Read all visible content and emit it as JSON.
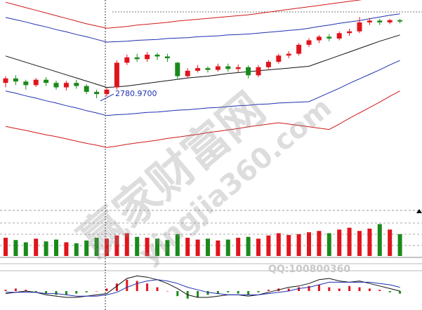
{
  "chart_data": [
    {
      "type": "candlestick",
      "ylim": [
        2546,
        3000
      ],
      "up_color": "#e0141c",
      "down_color": "#1a8a1a",
      "annotation": "2780.9700",
      "annotation_value": 2780.97,
      "open": [
        2815,
        2825,
        2818,
        2810,
        2822,
        2815,
        2805,
        2815,
        2808,
        2795,
        2790,
        2805,
        2860,
        2872,
        2868,
        2878,
        2874,
        2860,
        2830,
        2842,
        2848,
        2844,
        2852,
        2846,
        2850,
        2832,
        2850,
        2862,
        2876,
        2880,
        2900,
        2910,
        2918,
        2914,
        2926,
        2930,
        2950,
        2954,
        2950,
        2955
      ],
      "close": [
        2825,
        2818,
        2810,
        2822,
        2815,
        2805,
        2815,
        2808,
        2795,
        2790,
        2800,
        2860,
        2872,
        2868,
        2878,
        2874,
        2870,
        2830,
        2842,
        2848,
        2844,
        2852,
        2846,
        2850,
        2832,
        2850,
        2862,
        2876,
        2880,
        2900,
        2910,
        2918,
        2914,
        2926,
        2930,
        2950,
        2954,
        2950,
        2955,
        2952
      ],
      "high": [
        2830,
        2832,
        2822,
        2826,
        2828,
        2820,
        2820,
        2822,
        2812,
        2800,
        2805,
        2865,
        2878,
        2880,
        2884,
        2882,
        2880,
        2862,
        2848,
        2855,
        2852,
        2858,
        2858,
        2856,
        2854,
        2855,
        2866,
        2880,
        2886,
        2904,
        2915,
        2922,
        2924,
        2930,
        2936,
        2962,
        2960,
        2958,
        2958,
        2958
      ],
      "low": [
        2805,
        2810,
        2800,
        2806,
        2808,
        2800,
        2798,
        2802,
        2790,
        2781,
        2785,
        2800,
        2855,
        2862,
        2862,
        2866,
        2862,
        2822,
        2826,
        2838,
        2838,
        2840,
        2840,
        2838,
        2825,
        2828,
        2846,
        2858,
        2870,
        2876,
        2895,
        2904,
        2908,
        2910,
        2920,
        2926,
        2944,
        2944,
        2946,
        2948
      ],
      "series": [
        {
          "color": "#111111",
          "values": [
            2875,
            2868,
            2861,
            2854,
            2847,
            2840,
            2833,
            2826,
            2819,
            2812,
            2805,
            2806,
            2808,
            2811,
            2814,
            2817,
            2820,
            2823,
            2826,
            2828,
            2830,
            2833,
            2836,
            2838,
            2840,
            2842,
            2844,
            2846,
            2848,
            2850,
            2852,
            2860,
            2868,
            2876,
            2884,
            2892,
            2900,
            2908,
            2915,
            2922
          ]
        },
        {
          "color": "#1f2fb0",
          "values": [
            2961,
            2956,
            2951,
            2945,
            2940,
            2934,
            2929,
            2923,
            2918,
            2912,
            2906,
            2907,
            2908,
            2910,
            2911,
            2912,
            2914,
            2915,
            2916,
            2918,
            2919,
            2920,
            2922,
            2923,
            2924,
            2926,
            2928,
            2930,
            2932,
            2934,
            2937,
            2941,
            2944,
            2948,
            2951,
            2954,
            2958,
            2962,
            2966,
            2969
          ]
        },
        {
          "color": "#1f2fb0",
          "values": [
            2797,
            2792,
            2786,
            2781,
            2775,
            2770,
            2764,
            2759,
            2753,
            2748,
            2742,
            2744,
            2745,
            2747,
            2749,
            2750,
            2752,
            2754,
            2755,
            2757,
            2759,
            2760,
            2762,
            2764,
            2765,
            2767,
            2768,
            2770,
            2771,
            2772,
            2773,
            2783,
            2793,
            2803,
            2814,
            2824,
            2834,
            2844,
            2855,
            2865
          ]
        },
        {
          "color": "#d01818",
          "values": [
            2995,
            2989,
            2983,
            2977,
            2971,
            2965,
            2959,
            2953,
            2947,
            2942,
            2937,
            2939,
            2941,
            2944,
            2946,
            2948,
            2950,
            2953,
            2955,
            2957,
            2959,
            2961,
            2963,
            2965,
            2967,
            2970,
            2973,
            2976,
            2979,
            2982,
            2985,
            2988,
            2991,
            2994,
            2997,
            3000,
            3003,
            3006,
            3009,
            3012
          ]
        },
        {
          "color": "#d01818",
          "values": [
            2718,
            2713,
            2709,
            2704,
            2699,
            2695,
            2690,
            2685,
            2680,
            2676,
            2671,
            2674,
            2678,
            2681,
            2684,
            2687,
            2691,
            2694,
            2697,
            2700,
            2704,
            2707,
            2710,
            2713,
            2717,
            2720,
            2723,
            2726,
            2723,
            2720,
            2717,
            2714,
            2711,
            2723,
            2736,
            2748,
            2760,
            2772,
            2785,
            2797
          ]
        }
      ]
    },
    {
      "type": "volume",
      "ylim": [
        0,
        100
      ],
      "values": [
        40,
        35,
        30,
        38,
        32,
        36,
        30,
        28,
        34,
        40,
        38,
        45,
        50,
        42,
        40,
        38,
        35,
        48,
        40,
        36,
        38,
        34,
        36,
        40,
        42,
        38,
        45,
        50,
        46,
        48,
        52,
        55,
        50,
        58,
        62,
        55,
        60,
        70,
        58,
        48
      ]
    },
    {
      "type": "macd",
      "ylim": [
        -15,
        15
      ],
      "up_color": "#e0141c",
      "down_color": "#1a8a1a",
      "hist": [
        1,
        2,
        1,
        -1,
        -2,
        -3,
        -3,
        -2,
        -1,
        0,
        2,
        6,
        9,
        8,
        6,
        3,
        0,
        -4,
        -6,
        -5,
        -3,
        -2,
        -1,
        -2,
        -3,
        -1,
        1,
        2,
        2,
        3,
        4,
        5,
        3,
        2,
        4,
        3,
        2,
        1,
        -1,
        -2
      ],
      "series": [
        {
          "color": "#111111",
          "values": [
            -2,
            -1,
            0,
            -1,
            -3,
            -4,
            -5,
            -5,
            -4,
            -3,
            -2,
            4,
            10,
            12,
            11,
            9,
            6,
            2,
            -3,
            -5,
            -5,
            -4,
            -3,
            -3,
            -4,
            -3,
            -1,
            1,
            3,
            4,
            6,
            9,
            10,
            8,
            7,
            8,
            6,
            4,
            2,
            0
          ]
        },
        {
          "color": "#1f2fb0",
          "values": [
            -1,
            -1,
            -1,
            -1,
            -2,
            -2,
            -3,
            -4,
            -4,
            -4,
            -3,
            -1,
            3,
            6,
            8,
            9,
            8,
            6,
            3,
            1,
            -1,
            -2,
            -3,
            -3,
            -3,
            -3,
            -2,
            -1,
            0,
            2,
            3,
            5,
            7,
            7,
            7,
            7,
            7,
            6,
            5,
            3
          ]
        }
      ]
    }
  ],
  "watermark": {
    "title": "赢家财富网",
    "site": "yingjia360.com",
    "qq": "QQ:100800360"
  }
}
